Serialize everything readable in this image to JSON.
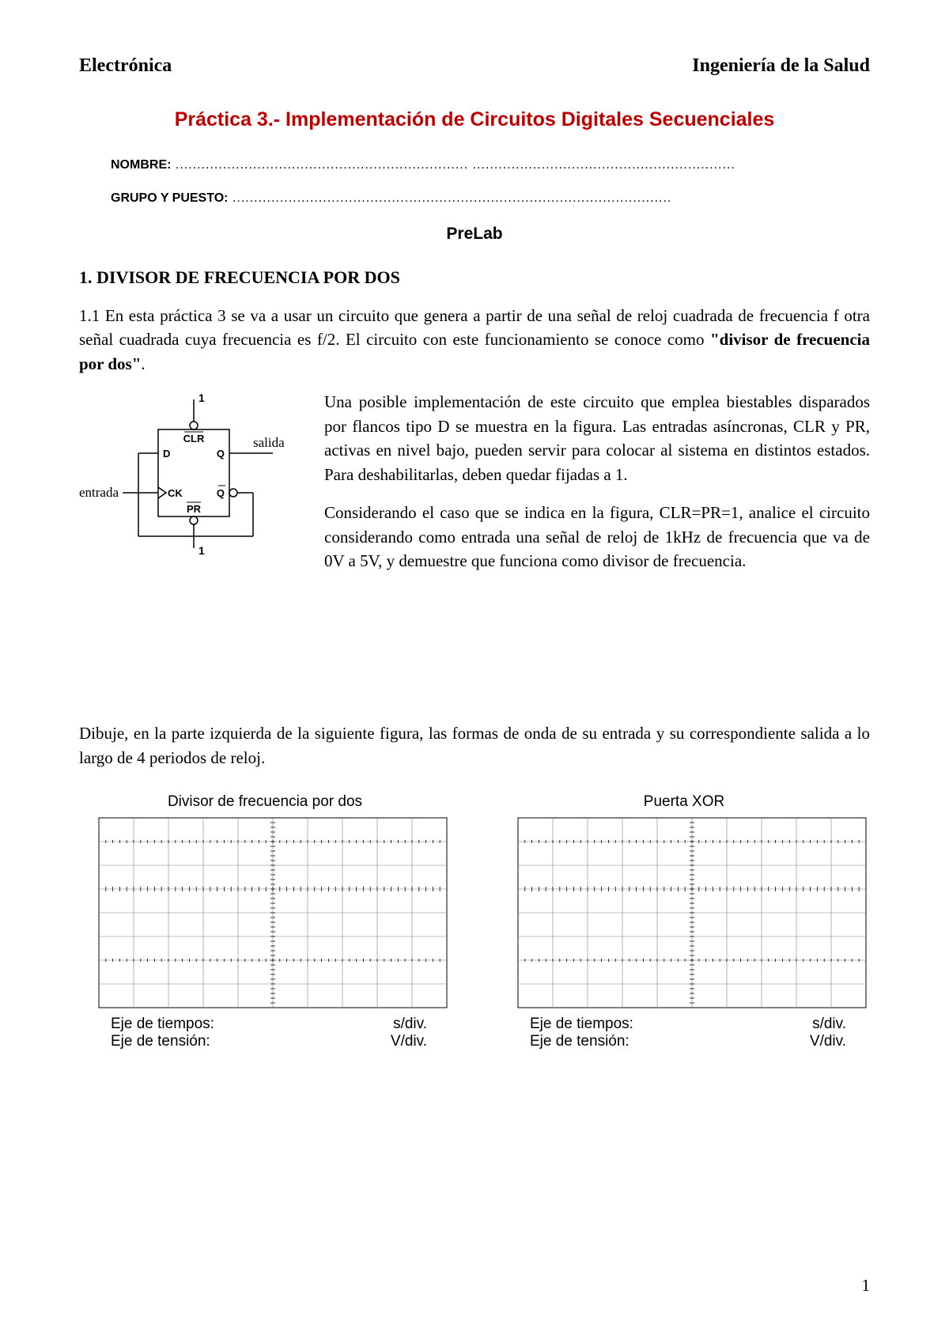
{
  "header": {
    "left": "Electrónica",
    "right": "Ingeniería de la Salud"
  },
  "title": "Práctica 3.- Implementación de Circuitos Digitales Secuenciales",
  "form": {
    "nombre_label": "NOMBRE:",
    "nombre_dots": " .................................................................... .............................................................",
    "grupo_label": "GRUPO Y PUESTO:",
    "grupo_dots": " ......................................................................................................"
  },
  "prelab": "PreLab",
  "section1_heading": "1. DIVISOR DE FRECUENCIA POR DOS",
  "para1": "1.1 En esta práctica 3 se va a usar un circuito que genera a partir de una señal de reloj cuadrada de frecuencia f otra señal cuadrada cuya frecuencia es f/2. El circuito con este funcionamiento se conoce como \"divisor de frecuencia por dos\".",
  "para2": "Una posible implementación de este circuito que emplea biestables disparados por flancos tipo D se muestra en la figura. Las entradas asíncronas, CLR y PR, activas en nivel bajo, pueden servir para colocar al sistema en distintos estados. Para deshabilitarlas, deben quedar fijadas a 1.",
  "para3": "Considerando el caso que se indica en la figura, CLR=PR=1, analice el circuito considerando como entrada una señal de reloj de 1kHz de frecuencia que va de 0V a 5V, y demuestre que funciona como divisor de frecuencia.",
  "task": "Dibuje, en la parte izquierda de la siguiente figura, las formas de onda de su entrada y su correspondiente salida a lo largo de 4 periodos de reloj.",
  "circuit": {
    "labels": {
      "top1": "1",
      "bot1": "1",
      "CLR": "CLR",
      "PR": "PR",
      "D": "D",
      "Q": "Q",
      "Qbar": "Q",
      "CK": "CK",
      "entrada": "entrada",
      "salida": "salida"
    },
    "stroke": "#000000",
    "stroke_width": 1.5,
    "font_family": "Arial, Helvetica, sans-serif"
  },
  "scope": {
    "left_title": "Divisor de frecuencia por dos",
    "right_title": "Puerta XOR",
    "eje_tiempos": "Eje de tiempos:",
    "eje_tension": "Eje de tensión:",
    "sdiv": "s/div.",
    "vdiv": "V/div.",
    "grid": {
      "cols": 10,
      "rows": 8,
      "border_color": "#000000",
      "grid_color": "#808080",
      "tick_color": "#000000",
      "minor_ticks_per_div": 5,
      "dotted_rows": [
        1,
        6
      ],
      "major_axis_row": 3,
      "major_axis_col": 5
    }
  },
  "page_number": "1"
}
